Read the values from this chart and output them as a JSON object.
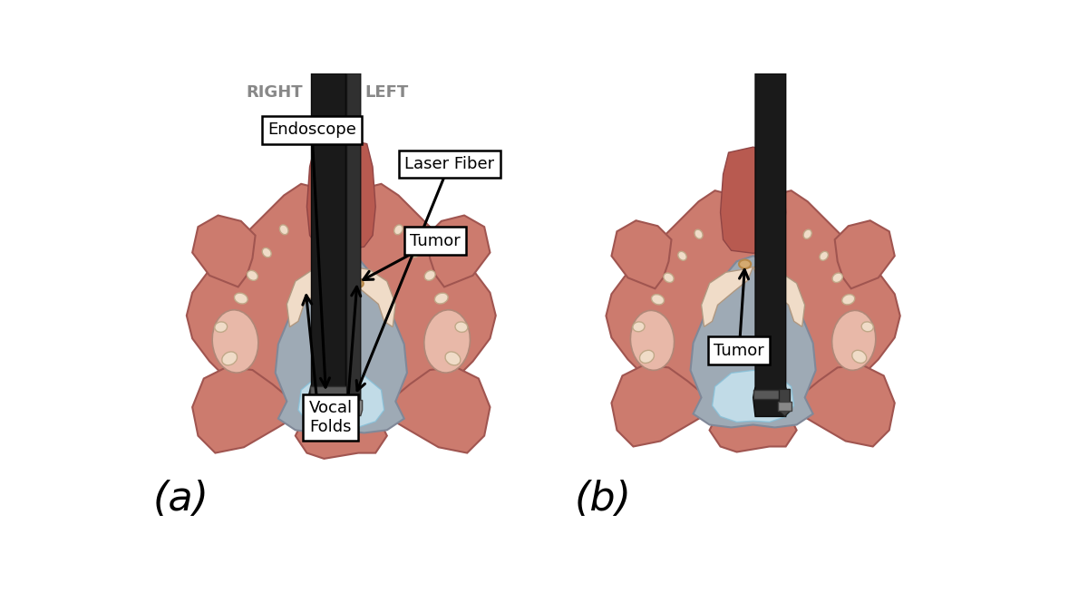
{
  "bg_color": "#ffffff",
  "flesh_color": "#cc7b6e",
  "flesh_light": "#dda090",
  "flesh_lighter": "#e8b8a8",
  "flesh_dark": "#b85a50",
  "flesh_inner": "#c96a60",
  "bone_color": "#f0dcc8",
  "bone_shadow": "#d8c0a8",
  "gray_tissue": "#9eaab5",
  "gray_light": "#bcc8d0",
  "blue_light": "#c8e4f0",
  "blue_lighter": "#daf0f8",
  "instrument_dark": "#1a1a1a",
  "instrument_mid": "#383838",
  "instrument_gray": "#585858",
  "instrument_silver": "#888888",
  "tumor_color": "#d4aa70",
  "tumor_shadow": "#b88848",
  "laser_red": "#dd2200",
  "text_color": "#000000",
  "label_gray": "#888888",
  "panel_a_label": "(a)",
  "panel_b_label": "(b)",
  "right_label": "RIGHT",
  "left_label": "LEFT",
  "endoscope_label": "Endoscope",
  "laser_label": "Laser Fiber",
  "tumor_label_a": "Tumor",
  "tumor_label_b": "Tumor",
  "vocal_label": "Vocal\nFolds"
}
